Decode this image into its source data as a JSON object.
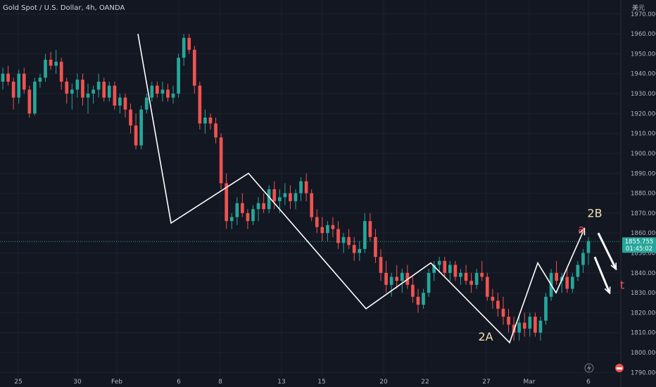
{
  "header": {
    "title": "Gold Spot / U.S. Dollar, 4h, OANDA",
    "currency_unit": "美元"
  },
  "price_label": {
    "price": "1855.755",
    "countdown": "01:45:02"
  },
  "chart_data": {
    "type": "candlestick",
    "title": "Gold Spot / U.S. Dollar, 4h, OANDA",
    "ylabel": "美元",
    "ylim": [
      1788,
      1977
    ],
    "y_ticks": [
      1790,
      1800,
      1810,
      1820,
      1830,
      1840,
      1850,
      1860,
      1870,
      1880,
      1890,
      1900,
      1910,
      1920,
      1930,
      1940,
      1950,
      1960,
      1970
    ],
    "x_ticks": [
      "25",
      "30",
      "Feb",
      "6",
      "8",
      "13",
      "15",
      "20",
      "22",
      "27",
      "Mar",
      "6"
    ],
    "current_price": 1855.755,
    "colors": {
      "up": "#26a69a",
      "down": "#ef5350",
      "background": "#131722",
      "wave": "#ffffff",
      "label": "#f0e0b0",
      "label_red": "#ef5350"
    },
    "candles": [
      [
        1936,
        1943,
        1932,
        1940
      ],
      [
        1940,
        1944,
        1934,
        1936
      ],
      [
        1936,
        1938,
        1922,
        1928
      ],
      [
        1928,
        1942,
        1925,
        1940
      ],
      [
        1940,
        1943,
        1930,
        1932
      ],
      [
        1932,
        1934,
        1918,
        1920
      ],
      [
        1920,
        1938,
        1919,
        1936
      ],
      [
        1936,
        1940,
        1933,
        1938
      ],
      [
        1938,
        1950,
        1936,
        1947
      ],
      [
        1947,
        1951,
        1942,
        1944
      ],
      [
        1944,
        1952,
        1940,
        1946
      ],
      [
        1946,
        1948,
        1932,
        1936
      ],
      [
        1936,
        1938,
        1925,
        1930
      ],
      [
        1930,
        1935,
        1922,
        1932
      ],
      [
        1932,
        1940,
        1928,
        1937
      ],
      [
        1937,
        1940,
        1924,
        1928
      ],
      [
        1928,
        1935,
        1920,
        1930
      ],
      [
        1930,
        1934,
        1925,
        1932
      ],
      [
        1932,
        1940,
        1928,
        1936
      ],
      [
        1936,
        1938,
        1926,
        1928
      ],
      [
        1928,
        1936,
        1926,
        1934
      ],
      [
        1934,
        1936,
        1922,
        1924
      ],
      [
        1924,
        1930,
        1920,
        1928
      ],
      [
        1928,
        1930,
        1918,
        1922
      ],
      [
        1922,
        1925,
        1910,
        1914
      ],
      [
        1914,
        1920,
        1902,
        1904
      ],
      [
        1904,
        1924,
        1902,
        1922
      ],
      [
        1922,
        1930,
        1920,
        1928
      ],
      [
        1928,
        1936,
        1926,
        1934
      ],
      [
        1934,
        1936,
        1928,
        1930
      ],
      [
        1930,
        1936,
        1926,
        1932
      ],
      [
        1932,
        1935,
        1926,
        1928
      ],
      [
        1928,
        1934,
        1925,
        1930
      ],
      [
        1930,
        1950,
        1928,
        1948
      ],
      [
        1948,
        1960,
        1944,
        1958
      ],
      [
        1958,
        1960,
        1950,
        1952
      ],
      [
        1952,
        1954,
        1930,
        1934
      ],
      [
        1934,
        1936,
        1912,
        1915
      ],
      [
        1915,
        1922,
        1910,
        1918
      ],
      [
        1918,
        1920,
        1912,
        1915
      ],
      [
        1915,
        1918,
        1905,
        1908
      ],
      [
        1908,
        1910,
        1882,
        1885
      ],
      [
        1885,
        1890,
        1862,
        1866
      ],
      [
        1866,
        1870,
        1862,
        1868
      ],
      [
        1868,
        1878,
        1864,
        1875
      ],
      [
        1875,
        1880,
        1868,
        1870
      ],
      [
        1870,
        1872,
        1862,
        1866
      ],
      [
        1866,
        1874,
        1864,
        1872
      ],
      [
        1872,
        1878,
        1866,
        1875
      ],
      [
        1875,
        1880,
        1870,
        1872
      ],
      [
        1872,
        1884,
        1870,
        1882
      ],
      [
        1882,
        1886,
        1872,
        1876
      ],
      [
        1876,
        1882,
        1870,
        1878
      ],
      [
        1878,
        1885,
        1874,
        1880
      ],
      [
        1880,
        1884,
        1872,
        1876
      ],
      [
        1876,
        1882,
        1872,
        1880
      ],
      [
        1880,
        1888,
        1876,
        1886
      ],
      [
        1886,
        1890,
        1876,
        1880
      ],
      [
        1880,
        1882,
        1866,
        1868
      ],
      [
        1868,
        1872,
        1860,
        1863
      ],
      [
        1863,
        1868,
        1856,
        1860
      ],
      [
        1860,
        1866,
        1856,
        1864
      ],
      [
        1864,
        1868,
        1858,
        1862
      ],
      [
        1862,
        1866,
        1852,
        1855
      ],
      [
        1855,
        1860,
        1850,
        1858
      ],
      [
        1858,
        1862,
        1852,
        1854
      ],
      [
        1854,
        1858,
        1846,
        1850
      ],
      [
        1850,
        1856,
        1846,
        1852
      ],
      [
        1852,
        1870,
        1850,
        1866
      ],
      [
        1866,
        1870,
        1856,
        1858
      ],
      [
        1858,
        1862,
        1845,
        1848
      ],
      [
        1848,
        1852,
        1836,
        1840
      ],
      [
        1840,
        1846,
        1830,
        1834
      ],
      [
        1834,
        1840,
        1828,
        1838
      ],
      [
        1838,
        1844,
        1832,
        1836
      ],
      [
        1836,
        1842,
        1830,
        1840
      ],
      [
        1840,
        1844,
        1832,
        1834
      ],
      [
        1834,
        1838,
        1825,
        1828
      ],
      [
        1828,
        1832,
        1820,
        1824
      ],
      [
        1824,
        1832,
        1822,
        1830
      ],
      [
        1830,
        1842,
        1828,
        1840
      ],
      [
        1840,
        1846,
        1836,
        1844
      ],
      [
        1844,
        1848,
        1840,
        1846
      ],
      [
        1846,
        1848,
        1838,
        1840
      ],
      [
        1840,
        1846,
        1836,
        1844
      ],
      [
        1844,
        1846,
        1836,
        1838
      ],
      [
        1838,
        1842,
        1834,
        1840
      ],
      [
        1840,
        1844,
        1834,
        1836
      ],
      [
        1836,
        1840,
        1830,
        1834
      ],
      [
        1834,
        1842,
        1832,
        1840
      ],
      [
        1840,
        1846,
        1836,
        1838
      ],
      [
        1838,
        1840,
        1826,
        1828
      ],
      [
        1828,
        1832,
        1822,
        1826
      ],
      [
        1826,
        1830,
        1818,
        1822
      ],
      [
        1822,
        1828,
        1814,
        1818
      ],
      [
        1818,
        1822,
        1810,
        1814
      ],
      [
        1814,
        1818,
        1806,
        1810
      ],
      [
        1810,
        1818,
        1806,
        1815
      ],
      [
        1815,
        1820,
        1808,
        1812
      ],
      [
        1812,
        1820,
        1808,
        1818
      ],
      [
        1818,
        1820,
        1808,
        1810
      ],
      [
        1810,
        1818,
        1806,
        1816
      ],
      [
        1816,
        1830,
        1814,
        1828
      ],
      [
        1828,
        1842,
        1826,
        1840
      ],
      [
        1840,
        1846,
        1834,
        1836
      ],
      [
        1836,
        1840,
        1830,
        1838
      ],
      [
        1838,
        1842,
        1830,
        1832
      ],
      [
        1832,
        1840,
        1830,
        1838
      ],
      [
        1838,
        1846,
        1836,
        1844
      ],
      [
        1844,
        1852,
        1840,
        1850
      ],
      [
        1850,
        1858,
        1844,
        1856
      ]
    ],
    "waves": [
      [
        [
          1960,
          1935
        ],
        [
          1865,
          1963
        ],
        [
          1890,
          1968
        ],
        [
          1822,
          1972
        ],
        [
          1845,
          1976
        ],
        [
          1805,
          1980
        ],
        [
          1845,
          1982
        ],
        [
          1830,
          1984
        ],
        [
          1862,
          1986
        ]
      ],
      [
        [
          1860,
          1991
        ],
        [
          1842,
          1993
        ]
      ],
      [
        [
          1848,
          1990
        ],
        [
          1830,
          1992
        ]
      ]
    ],
    "annotations": [
      {
        "text": "2A",
        "price": 1806,
        "at": 1979,
        "color": "label"
      },
      {
        "text": "2B",
        "price": 1868,
        "at": 1987,
        "color": "label"
      },
      {
        "text": "a",
        "price": 1860,
        "at": 1986,
        "color": "label_red"
      },
      {
        "text": "t",
        "price": 1832,
        "at": 1993,
        "color": "label_red"
      }
    ]
  }
}
